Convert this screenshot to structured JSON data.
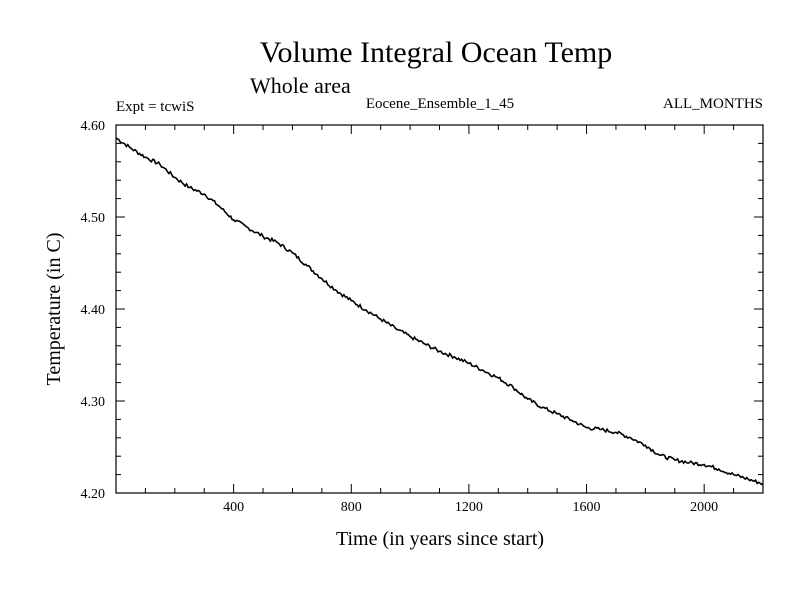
{
  "chart_data": {
    "type": "line",
    "title": "Volume Integral Ocean Temp",
    "subtitle": "Whole area",
    "header_left": "Expt = tcwiS",
    "header_center": "Eocene_Ensemble_1_45",
    "header_right": "ALL_MONTHS",
    "xlabel": "Time (in years since start)",
    "ylabel": "Temperature (in C)",
    "xlim": [
      0,
      2200
    ],
    "ylim": [
      4.2,
      4.6
    ],
    "xticks": [
      400,
      800,
      1200,
      1600,
      2000
    ],
    "yticks": [
      "4.20",
      "4.30",
      "4.40",
      "4.50",
      "4.60"
    ],
    "grid": false,
    "color": "#000000",
    "series": [
      {
        "x": [
          0,
          50,
          100,
          150,
          200,
          250,
          300,
          350,
          400,
          450,
          500,
          550,
          600,
          650,
          700,
          750,
          800,
          850,
          900,
          950,
          1000,
          1050,
          1100,
          1150,
          1200,
          1250,
          1300,
          1350,
          1400,
          1450,
          1500,
          1550,
          1600,
          1650,
          1700,
          1750,
          1800,
          1850,
          1900,
          1950,
          2000,
          2050,
          2100,
          2150,
          2200
        ],
        "y": [
          4.586,
          4.575,
          4.565,
          4.557,
          4.543,
          4.532,
          4.525,
          4.512,
          4.497,
          4.488,
          4.479,
          4.472,
          4.461,
          4.447,
          4.433,
          4.42,
          4.409,
          4.399,
          4.389,
          4.379,
          4.37,
          4.362,
          4.354,
          4.348,
          4.341,
          4.333,
          4.325,
          4.315,
          4.302,
          4.293,
          4.286,
          4.279,
          4.271,
          4.269,
          4.266,
          4.26,
          4.252,
          4.241,
          4.236,
          4.233,
          4.231,
          4.226,
          4.22,
          4.215,
          4.21
        ]
      }
    ]
  }
}
